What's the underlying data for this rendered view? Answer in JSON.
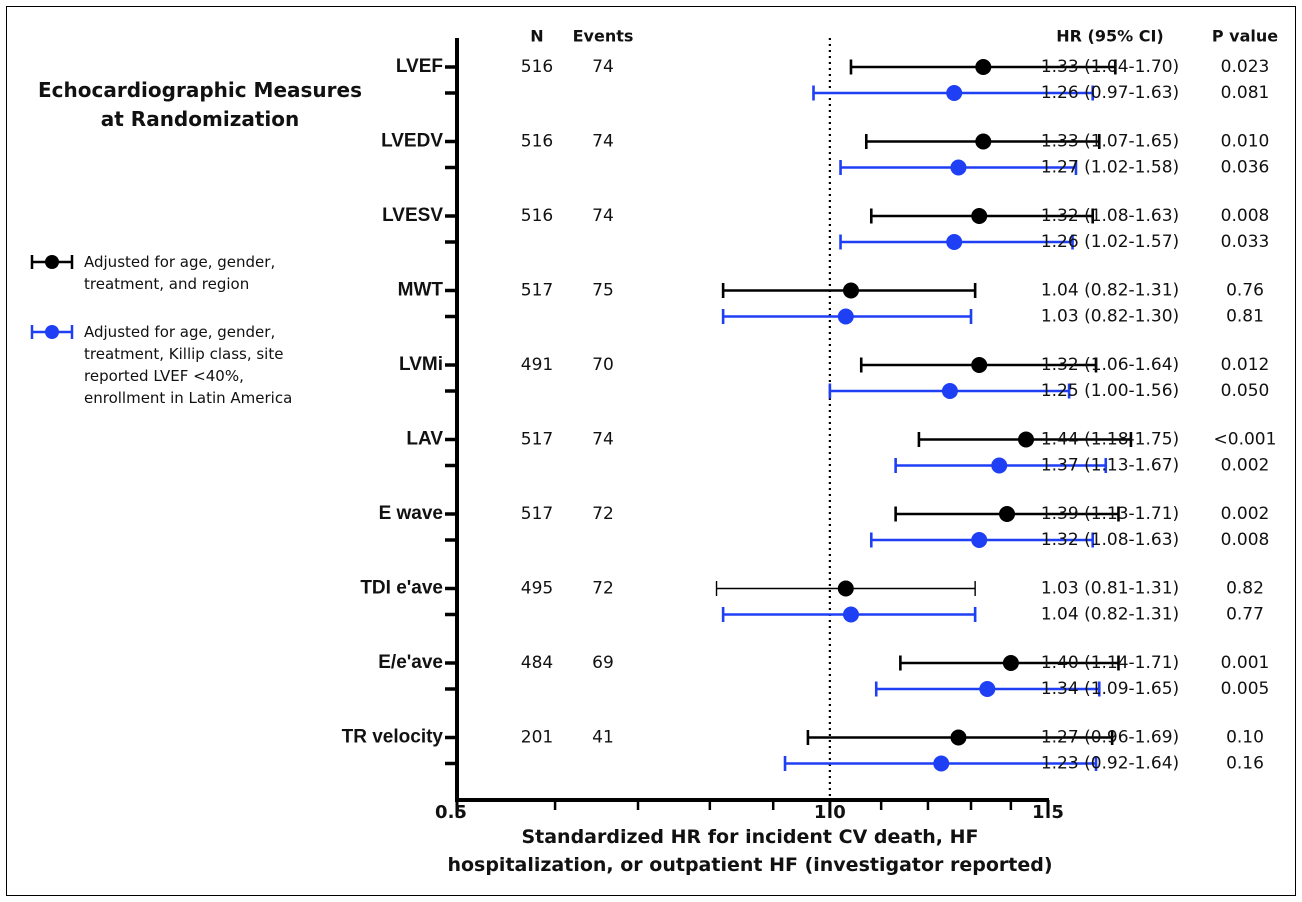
{
  "side_title": {
    "line1": "Echocardiographic Measures",
    "line2": "at Randomization"
  },
  "legend": [
    {
      "lines": [
        "Adjusted for age, gender,",
        "treatment, and region"
      ],
      "color": "#000000"
    },
    {
      "lines": [
        "Adjusted for age, gender,",
        "treatment, Killip class, site",
        "reported LVEF <40%,",
        "enrollment in Latin America"
      ],
      "color": "#1f3ff5"
    }
  ],
  "column_headers": {
    "n": "N",
    "events": "Events",
    "hr": "HR (95% CI)",
    "p": "P value"
  },
  "x_title": {
    "line1": "Standardized HR for incident CV death, HF",
    "line2": "hospitalization, or outpatient HF (investigator reported)"
  },
  "colors": {
    "model1": "#000000",
    "model2": "#1f3ff5",
    "axis": "#000000"
  },
  "chart_data": {
    "type": "forest",
    "x_scale": "log",
    "xlim": [
      0.5,
      1.5
    ],
    "x_ticks": [
      0.5,
      1.0,
      1.5
    ],
    "x_tick_labels": [
      "0.5",
      "1.0",
      "1.5"
    ],
    "reference_line": 1.0,
    "series": [
      {
        "name": "Adjusted for age, gender, treatment, and region",
        "color": "#000000"
      },
      {
        "name": "Adjusted for age, gender, treatment, Killip class, site reported LVEF <40%, enrollment in Latin America",
        "color": "#1f3ff5"
      }
    ],
    "rows": [
      {
        "label": "LVEF",
        "n": "516",
        "events": "74",
        "estimates": [
          {
            "hr": 1.33,
            "lo": 1.04,
            "hi": 1.7,
            "text": "1.33 (1.04-1.70)",
            "p": "0.023"
          },
          {
            "hr": 1.26,
            "lo": 0.97,
            "hi": 1.63,
            "text": "1.26 (0.97-1.63)",
            "p": "0.081"
          }
        ]
      },
      {
        "label": "LVEDV",
        "n": "516",
        "events": "74",
        "estimates": [
          {
            "hr": 1.33,
            "lo": 1.07,
            "hi": 1.65,
            "text": "1.33 (1.07-1.65)",
            "p": "0.010"
          },
          {
            "hr": 1.27,
            "lo": 1.02,
            "hi": 1.58,
            "text": "1.27 (1.02-1.58)",
            "p": "0.036"
          }
        ]
      },
      {
        "label": "LVESV",
        "n": "516",
        "events": "74",
        "estimates": [
          {
            "hr": 1.32,
            "lo": 1.08,
            "hi": 1.63,
            "text": "1.32 (1.08-1.63)",
            "p": "0.008"
          },
          {
            "hr": 1.26,
            "lo": 1.02,
            "hi": 1.57,
            "text": "1.26 (1.02-1.57)",
            "p": "0.033"
          }
        ]
      },
      {
        "label": "MWT",
        "n": "517",
        "events": "75",
        "estimates": [
          {
            "hr": 1.04,
            "lo": 0.82,
            "hi": 1.31,
            "text": "1.04 (0.82-1.31)",
            "p": "0.76"
          },
          {
            "hr": 1.03,
            "lo": 0.82,
            "hi": 1.3,
            "text": "1.03 (0.82-1.30)",
            "p": "0.81"
          }
        ]
      },
      {
        "label": "LVMi",
        "n": "491",
        "events": "70",
        "estimates": [
          {
            "hr": 1.32,
            "lo": 1.06,
            "hi": 1.64,
            "text": "1.32 (1.06-1.64)",
            "p": "0.012"
          },
          {
            "hr": 1.25,
            "lo": 1.0,
            "hi": 1.56,
            "text": "1.25 (1.00-1.56)",
            "p": "0.050"
          }
        ]
      },
      {
        "label": "LAV",
        "n": "517",
        "events": "74",
        "estimates": [
          {
            "hr": 1.44,
            "lo": 1.18,
            "hi": 1.75,
            "text": "1.44 (1.18-1.75)",
            "p": "<0.001"
          },
          {
            "hr": 1.37,
            "lo": 1.13,
            "hi": 1.67,
            "text": "1.37 (1.13-1.67)",
            "p": "0.002"
          }
        ]
      },
      {
        "label": "E wave",
        "n": "517",
        "events": "72",
        "estimates": [
          {
            "hr": 1.39,
            "lo": 1.13,
            "hi": 1.71,
            "text": "1.39 (1.13-1.71)",
            "p": "0.002"
          },
          {
            "hr": 1.32,
            "lo": 1.08,
            "hi": 1.63,
            "text": "1.32 (1.08-1.63)",
            "p": "0.008"
          }
        ]
      },
      {
        "label": "TDI e'ave",
        "n": "495",
        "events": "72",
        "estimates": [
          {
            "hr": 1.03,
            "lo": 0.81,
            "hi": 1.31,
            "text": "1.03 (0.81-1.31)",
            "p": "0.82"
          },
          {
            "hr": 1.04,
            "lo": 0.82,
            "hi": 1.31,
            "text": "1.04 (0.82-1.31)",
            "p": "0.77"
          }
        ]
      },
      {
        "label": "E/e'ave",
        "n": "484",
        "events": "69",
        "estimates": [
          {
            "hr": 1.4,
            "lo": 1.14,
            "hi": 1.71,
            "text": "1.40 (1.14-1.71)",
            "p": "0.001"
          },
          {
            "hr": 1.34,
            "lo": 1.09,
            "hi": 1.65,
            "text": "1.34 (1.09-1.65)",
            "p": "0.005"
          }
        ]
      },
      {
        "label": "TR velocity",
        "n": "201",
        "events": "41",
        "estimates": [
          {
            "hr": 1.27,
            "lo": 0.96,
            "hi": 1.69,
            "text": "1.27 (0.96-1.69)",
            "p": "0.10"
          },
          {
            "hr": 1.23,
            "lo": 0.92,
            "hi": 1.64,
            "text": "1.23 (0.92-1.64)",
            "p": "0.16"
          }
        ]
      }
    ]
  }
}
